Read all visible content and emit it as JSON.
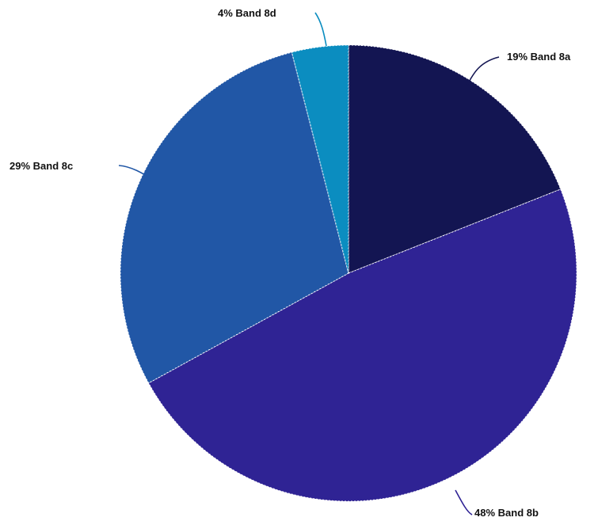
{
  "chart_data": {
    "type": "pie",
    "start_angle_deg": 0,
    "direction": "clockwise",
    "slices": [
      {
        "category": "Band 8a",
        "value": 19,
        "percent_label": "19%",
        "color": "#131552"
      },
      {
        "category": "Band 8b",
        "value": 48,
        "percent_label": "48%",
        "color": "#2f2394"
      },
      {
        "category": "Band 8c",
        "value": 29,
        "percent_label": "29%",
        "color": "#2157a6"
      },
      {
        "category": "Band 8d",
        "value": 4,
        "percent_label": "4%",
        "color": "#0b8dc0"
      }
    ],
    "legend": "none"
  }
}
